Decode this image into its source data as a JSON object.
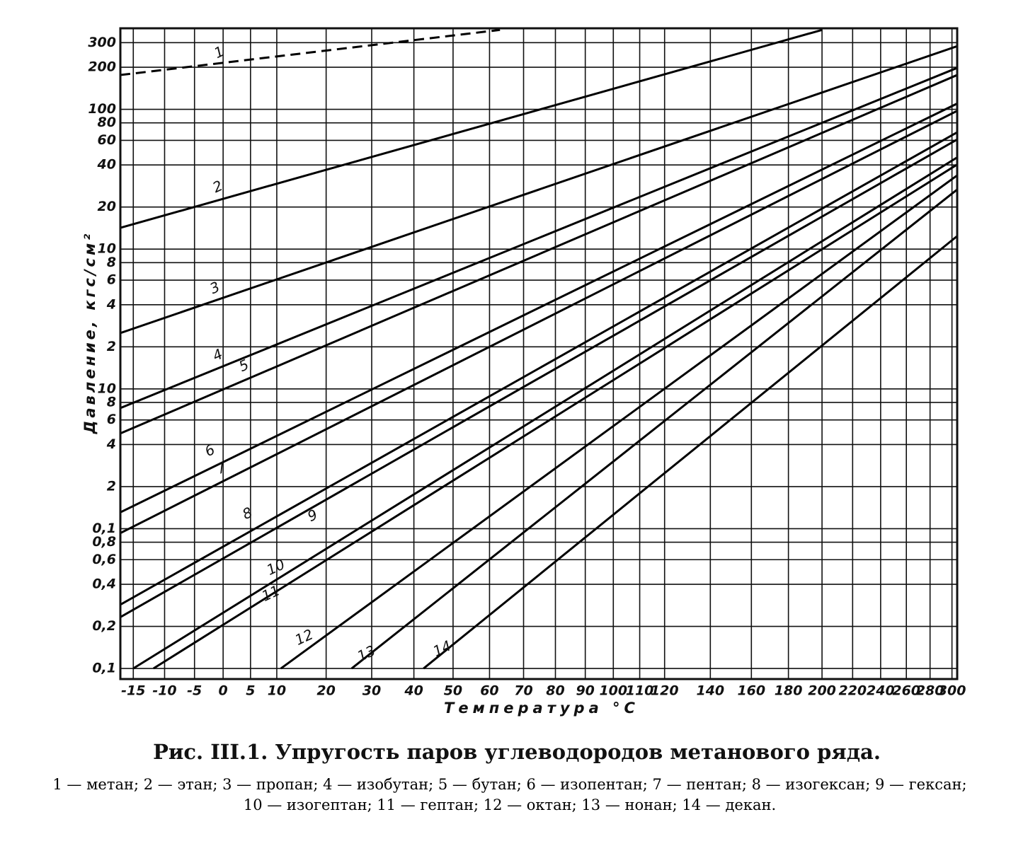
{
  "chart_data": {
    "type": "line",
    "title": "Рис. III.1. Упругость паров углеводородов метанового ряда.",
    "caption": "1 — метан; 2 — этан; 3 — пропан; 4 — изобутан; 5 — бутан; 6 — изопентан; 7 — пентан; 8 — изогексан; 9 — гексан; 10 — изогептан; 11 — гептан; 12 — октан; 13 — нонан; 14 — декан.",
    "x_label": "Температура °C",
    "y_label": "Давление, кгс/см²",
    "log_y": true,
    "grid": true,
    "color": "#000000",
    "xlim": [
      -17,
      305
    ],
    "ylim": [
      0.0084,
      380
    ],
    "xticks": [
      -15,
      -10,
      -5,
      0,
      5,
      10,
      20,
      30,
      40,
      50,
      60,
      70,
      80,
      90,
      100,
      110,
      120,
      140,
      160,
      180,
      200,
      220,
      240,
      260,
      280,
      300
    ],
    "yticks": [
      300,
      200,
      100,
      80,
      60,
      40,
      20,
      10,
      8,
      6,
      4,
      2,
      {
        "value": 1,
        "label": "10"
      },
      {
        "value": 0.8,
        "label": "8"
      },
      {
        "value": 0.6,
        "label": "6"
      },
      {
        "value": 0.4,
        "label": "4"
      },
      {
        "value": 0.2,
        "label": "2"
      },
      {
        "value": 0.1,
        "label": "0,1"
      },
      {
        "value": 0.08,
        "label": "0,8"
      },
      {
        "value": 0.06,
        "label": "0,6"
      },
      {
        "value": 0.04,
        "label": "0,4"
      },
      {
        "value": 0.02,
        "label": "0,2"
      },
      {
        "value": 0.01,
        "label": "0,1"
      }
    ],
    "series": [
      {
        "name": "1",
        "dashed": true,
        "x": [
          -17,
          63
        ],
        "values": [
          176,
          370
        ]
      },
      {
        "name": "2",
        "x": [
          -17,
          200
        ],
        "values": [
          14.2,
          370
        ]
      },
      {
        "name": "3",
        "x": [
          -17,
          305
        ],
        "values": [
          2.51,
          283
        ]
      },
      {
        "name": "4",
        "x": [
          -17,
          305
        ],
        "values": [
          0.73,
          198
        ]
      },
      {
        "name": "5",
        "x": [
          -17,
          305
        ],
        "values": [
          0.48,
          176
        ]
      },
      {
        "name": "6",
        "x": [
          -17,
          305
        ],
        "values": [
          0.131,
          110
        ]
      },
      {
        "name": "7",
        "x": [
          -17,
          305
        ],
        "values": [
          0.093,
          97.6
        ]
      },
      {
        "name": "8",
        "x": [
          -17,
          305
        ],
        "values": [
          0.0286,
          68.5
        ]
      },
      {
        "name": "9",
        "x": [
          -17,
          305
        ],
        "values": [
          0.0233,
          60.9
        ]
      },
      {
        "name": "10",
        "x": [
          -15,
          305
        ],
        "values": [
          0.01,
          45.3
        ]
      },
      {
        "name": "11",
        "x": [
          -11.8,
          305
        ],
        "values": [
          0.01,
          40.3
        ]
      },
      {
        "name": "12",
        "x": [
          10.8,
          305
        ],
        "values": [
          0.01,
          33.7
        ]
      },
      {
        "name": "13",
        "x": [
          25.5,
          305
        ],
        "values": [
          0.01,
          26.7
        ]
      },
      {
        "name": "14",
        "x": [
          42.4,
          305
        ],
        "values": [
          0.01,
          12.4
        ]
      }
    ]
  }
}
